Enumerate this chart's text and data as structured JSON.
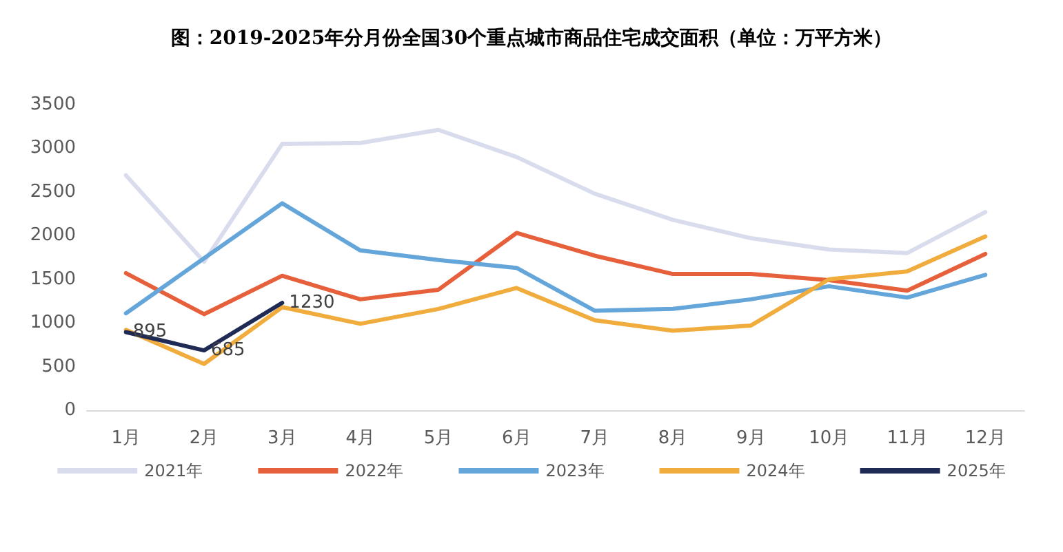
{
  "chart_data": {
    "type": "line",
    "title": "图：2019-2025年分月份全国30个重点城市商品住宅成交面积（单位：万平方米）",
    "categories": [
      "1月",
      "2月",
      "3月",
      "4月",
      "5月",
      "6月",
      "7月",
      "8月",
      "9月",
      "10月",
      "11月",
      "12月"
    ],
    "series": [
      {
        "name": "2021年",
        "color": "#d9dcec",
        "values": [
          2690,
          1700,
          3050,
          3060,
          3210,
          2900,
          2480,
          2180,
          1970,
          1840,
          1800,
          2270
        ]
      },
      {
        "name": "2022年",
        "color": "#e6603c",
        "values": [
          1570,
          1100,
          1540,
          1270,
          1380,
          2030,
          1770,
          1560,
          1560,
          1490,
          1370,
          1790
        ]
      },
      {
        "name": "2023年",
        "color": "#65a6da",
        "values": [
          1110,
          1740,
          2370,
          1830,
          1720,
          1630,
          1140,
          1160,
          1270,
          1420,
          1290,
          1550
        ]
      },
      {
        "name": "2024年",
        "color": "#f0ac3c",
        "values": [
          920,
          530,
          1180,
          990,
          1160,
          1400,
          1030,
          910,
          970,
          1500,
          1590,
          1990
        ]
      },
      {
        "name": "2025年",
        "color": "#1f2a55",
        "values": [
          895,
          685,
          1230,
          null,
          null,
          null,
          null,
          null,
          null,
          null,
          null,
          null
        ],
        "value_labels": [
          "895",
          "685",
          "1230",
          null,
          null,
          null,
          null,
          null,
          null,
          null,
          null,
          null
        ]
      }
    ],
    "ylim": [
      0,
      3500
    ],
    "yticks": [
      0,
      500,
      1000,
      1500,
      2000,
      2500,
      3000,
      3500
    ],
    "grid": false,
    "legend": "bottom",
    "marker": "none",
    "line_style": "solid"
  }
}
